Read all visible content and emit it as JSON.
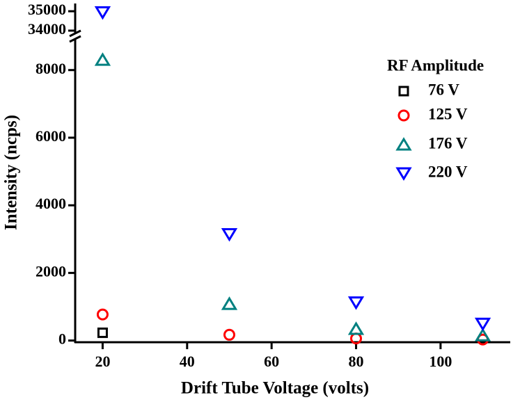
{
  "chart_data": {
    "type": "scatter",
    "x_label": "Drift Tube Voltage (volts)",
    "y_label": "Intensity (ncps)",
    "legend_title": "RF Amplitude",
    "legend_position": "upper right",
    "xlim": [
      13.5,
      116.5
    ],
    "xticks": [
      20,
      40,
      60,
      80,
      100
    ],
    "ylim": [
      -50,
      35400
    ],
    "y_break": [
      8900,
      33750
    ],
    "yticks": [
      0,
      2000,
      4000,
      6000,
      8000,
      34000,
      35000
    ],
    "series": [
      {
        "name": "76 V",
        "color": "#000000",
        "marker": "square",
        "x": [
          20
        ],
        "values": [
          230
        ]
      },
      {
        "name": "125 V",
        "color": "#ff0000",
        "marker": "circle",
        "x": [
          20,
          50,
          80,
          110
        ],
        "values": [
          770,
          170,
          60,
          30
        ]
      },
      {
        "name": "176 V",
        "color": "#008080",
        "marker": "triangle-up",
        "x": [
          20,
          50,
          80,
          110
        ],
        "values": [
          8300,
          1080,
          340,
          150
        ]
      },
      {
        "name": "220 V",
        "color": "#0000ff",
        "marker": "triangle-down",
        "x": [
          20,
          50,
          80,
          110
        ],
        "values": [
          34950,
          3150,
          1130,
          500
        ]
      }
    ]
  }
}
